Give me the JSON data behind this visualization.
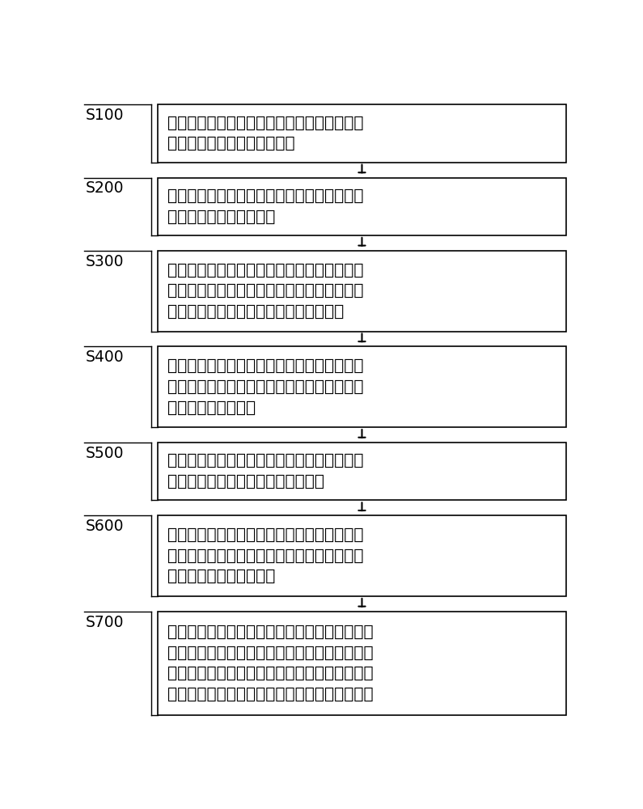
{
  "background_color": "#ffffff",
  "box_edge_color": "#000000",
  "box_fill_color": "#ffffff",
  "text_color": "#000000",
  "arrow_color": "#000000",
  "label_color": "#000000",
  "steps": [
    {
      "label": "S100",
      "text": "将已有的皮肤病图片分类为训练图片，然后分\n别存储在对应的图片数据库中",
      "lines": 2
    },
    {
      "label": "S200",
      "text": "对所有的训练图片进行数据增强处理，并对所\n有的训练图片进行预处理",
      "lines": 2
    },
    {
      "label": "S300",
      "text": "加载卷积神经网络，将图片数据库内的训练图\n片输入卷积神经网络中以对卷积神经网络不断\n进行训练，并通过损失函数计算权重损失",
      "lines": 3
    },
    {
      "label": "S400",
      "text": "根据损失函数计算所得的权重损失对卷积神经\n网络进行优化，得到最优的卷积神经网络后停\n止训练并把权重固定",
      "lines": 3
    },
    {
      "label": "S500",
      "text": "将需要分类的患者照片输入最优的卷积神经网\n络模型进行分类，得到图片分类结果",
      "lines": 2
    },
    {
      "label": "S600",
      "text": "对图片分类结果进行跟踪，结合医生的最终诊\n断结果，然后依据最终诊断结果将图片分类存\n储在对应的图片数据库中",
      "lines": 3
    },
    {
      "label": "S700",
      "text": "当优化后的最优卷积神经网络出现误判时，将误\n判的病例进行图像采集形成误判图片并进行数据\n增强处理，然后再将误判图片输入给卷积神经网\n络进行训练以对卷积神经网络进行权重修正微调",
      "lines": 4
    }
  ],
  "font_size": 14.5,
  "label_font_size": 13.5,
  "fig_width": 7.95,
  "fig_height": 10.0
}
